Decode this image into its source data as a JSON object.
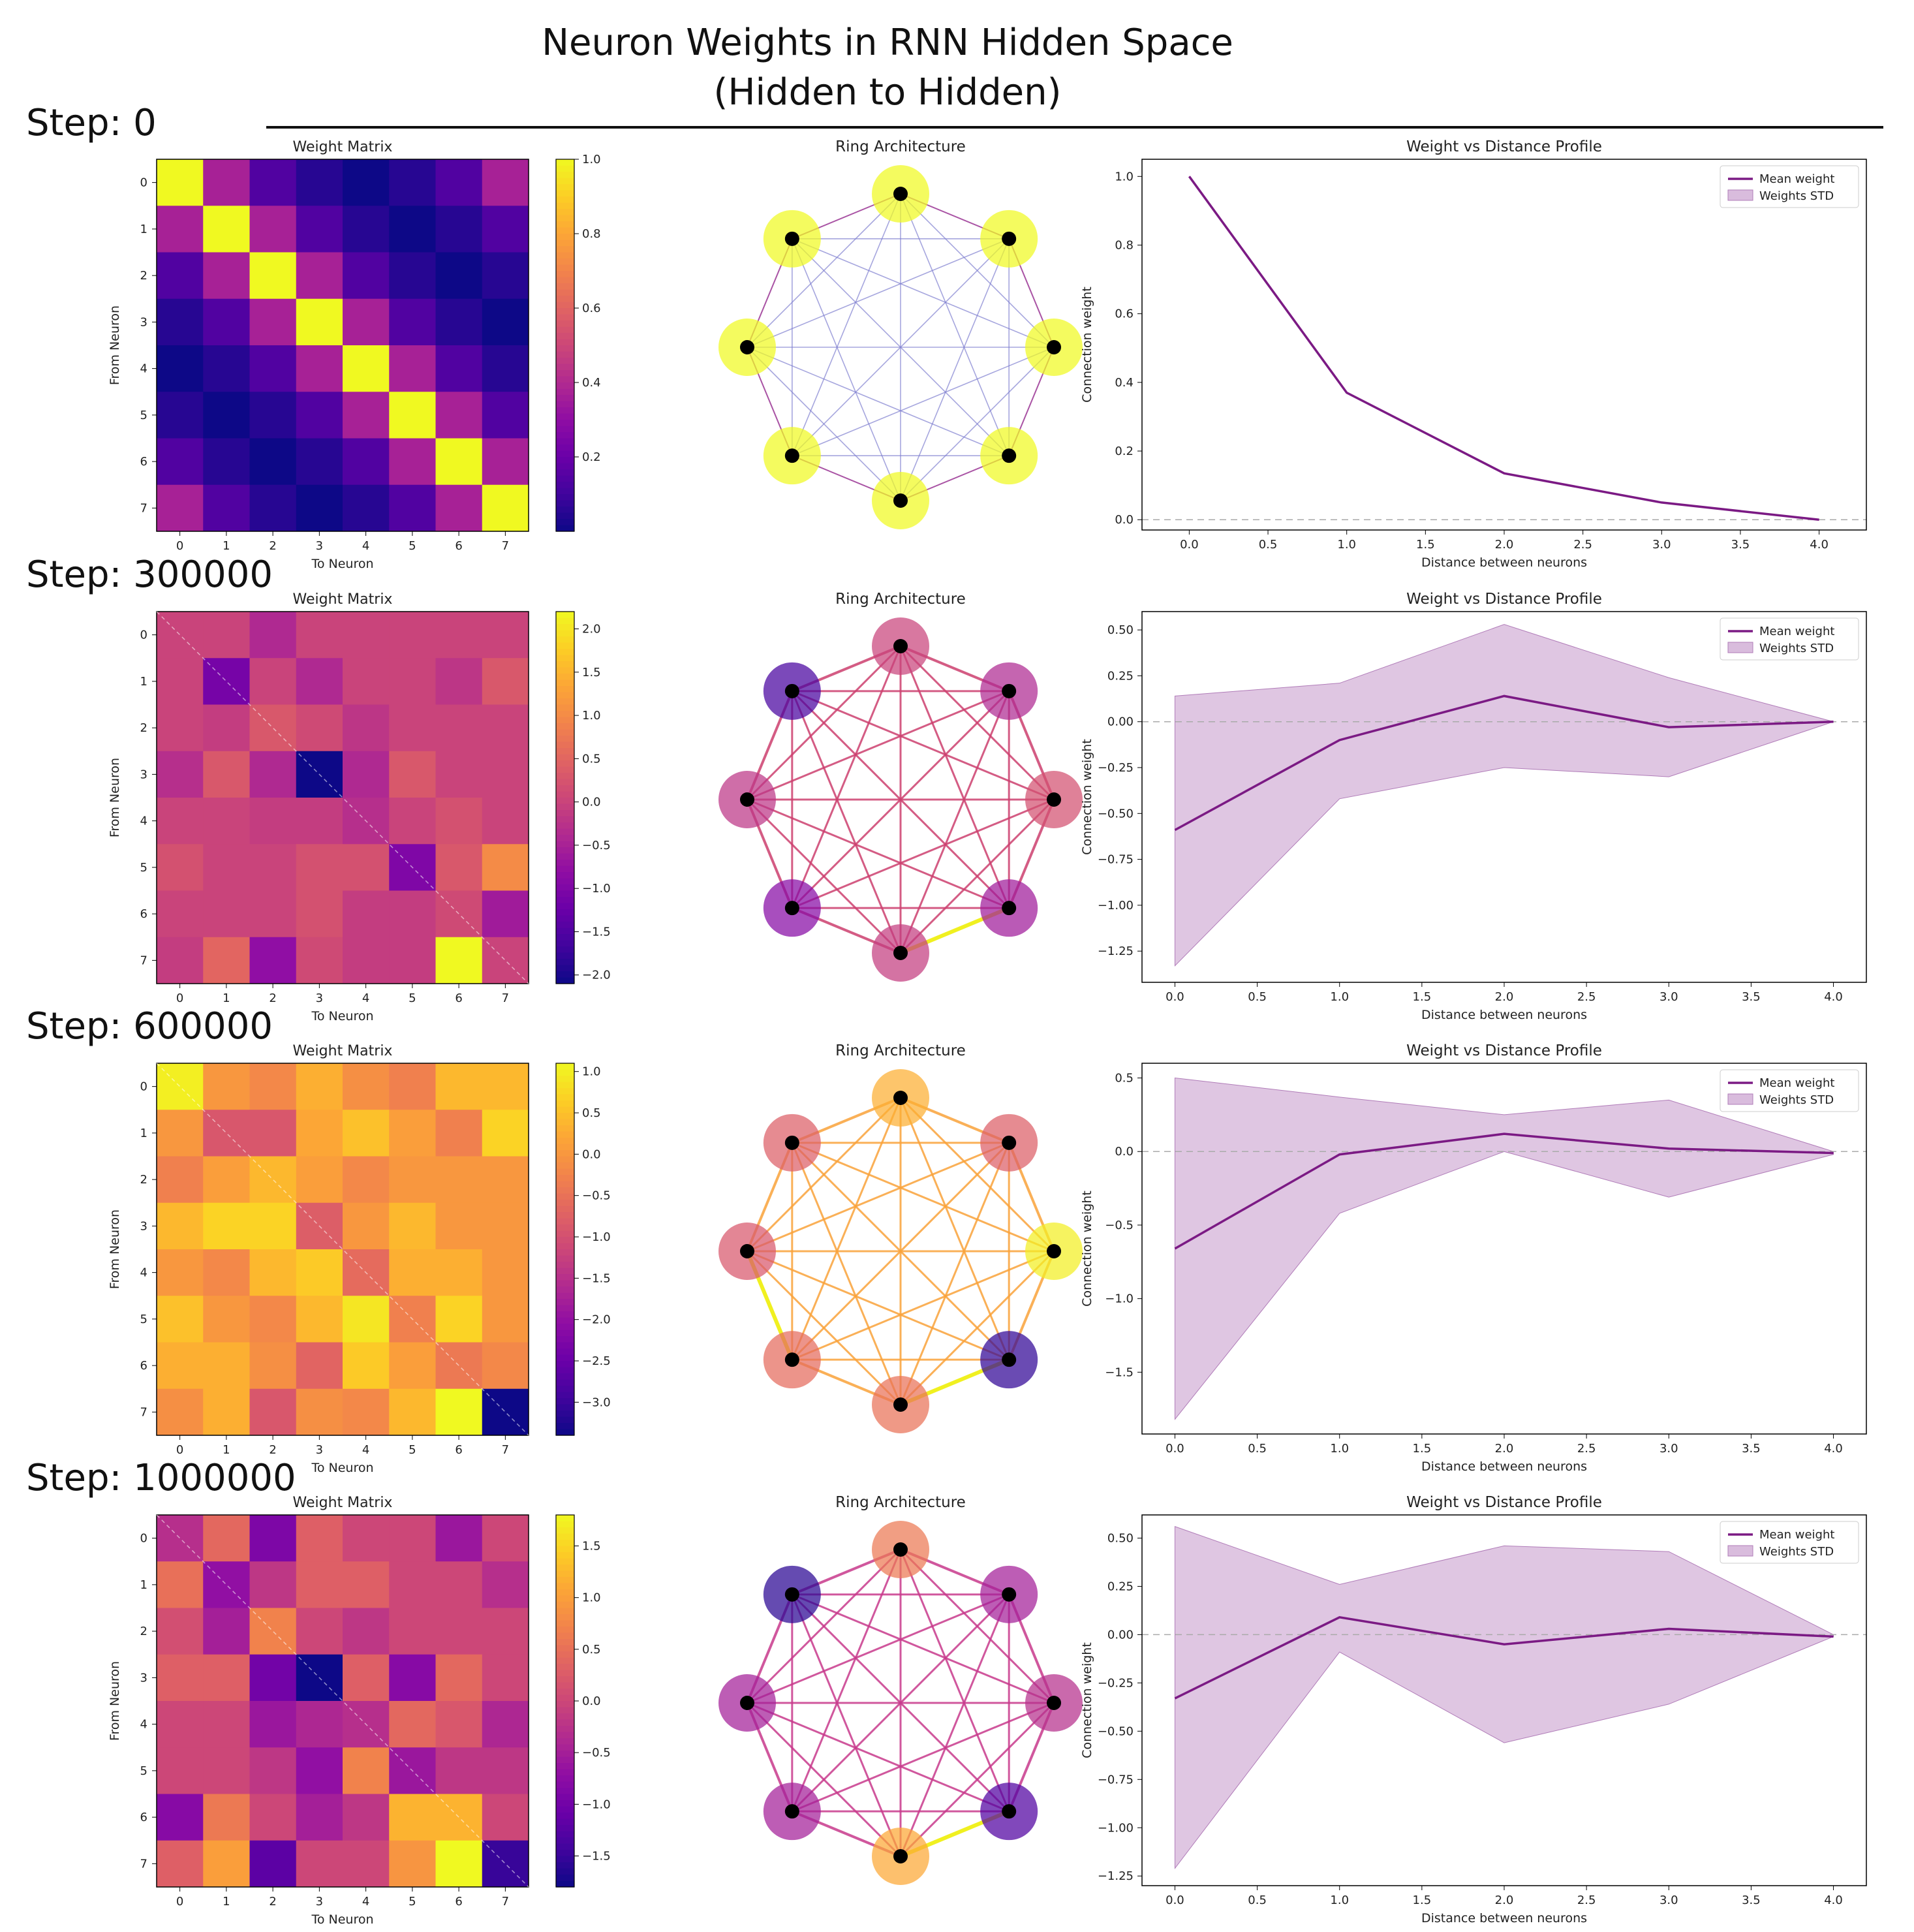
{
  "title": {
    "line1": "Neuron Weights in RNN Hidden Space",
    "line2": "(Hidden to Hidden)"
  },
  "rows": [
    {
      "step_label": "Step: 0",
      "matrix_title": "Weight Matrix",
      "ring_title": "Ring Architecture",
      "profile_title": "Weight vs Distance Profile"
    },
    {
      "step_label": "Step: 300000",
      "matrix_title": "Weight Matrix",
      "ring_title": "Ring Architecture",
      "profile_title": "Weight vs Distance Profile"
    },
    {
      "step_label": "Step: 600000",
      "matrix_title": "Weight Matrix",
      "ring_title": "Ring Architecture",
      "profile_title": "Weight vs Distance Profile"
    },
    {
      "step_label": "Step: 1000000",
      "matrix_title": "Weight Matrix",
      "ring_title": "Ring Architecture",
      "profile_title": "Weight vs Distance Profile"
    }
  ],
  "chart_data": [
    {
      "type": "heatmap",
      "title": "Weight Matrix",
      "xlabel": "To Neuron",
      "ylabel": "From Neuron",
      "ticks": [
        0,
        1,
        2,
        3,
        4,
        5,
        6,
        7
      ],
      "colormap": "plasma",
      "diagonal_line": false,
      "colorbar": {
        "min": 0,
        "max": 1,
        "ticks": [
          0.2,
          0.4,
          0.6,
          0.8,
          1.0
        ],
        "tick_labels": [
          "0.2",
          "0.4",
          "0.6",
          "0.8",
          "1.0"
        ]
      },
      "values": [
        [
          1.0,
          0.37,
          0.14,
          0.05,
          0.0,
          0.05,
          0.14,
          0.37
        ],
        [
          0.37,
          1.0,
          0.37,
          0.14,
          0.05,
          0.0,
          0.05,
          0.14
        ],
        [
          0.14,
          0.37,
          1.0,
          0.37,
          0.14,
          0.05,
          0.0,
          0.05
        ],
        [
          0.05,
          0.14,
          0.37,
          1.0,
          0.37,
          0.14,
          0.05,
          0.0
        ],
        [
          0.0,
          0.05,
          0.14,
          0.37,
          1.0,
          0.37,
          0.14,
          0.05
        ],
        [
          0.05,
          0.0,
          0.05,
          0.14,
          0.37,
          1.0,
          0.37,
          0.14
        ],
        [
          0.14,
          0.05,
          0.0,
          0.05,
          0.14,
          0.37,
          1.0,
          0.37
        ],
        [
          0.37,
          0.14,
          0.05,
          0.0,
          0.05,
          0.14,
          0.37,
          1.0
        ]
      ]
    },
    {
      "type": "ring",
      "title": "Ring Architecture",
      "node_values": [
        1,
        1,
        1,
        1,
        1,
        1,
        1,
        1
      ],
      "node_vmin": 0,
      "node_vmax": 1,
      "edge_style": "uniform",
      "edge_color": "#8080d0",
      "neighbor_edge_color": "#a0409a",
      "highlight_edges": []
    },
    {
      "type": "line",
      "title": "Weight vs Distance Profile",
      "xlabel": "Distance between neurons",
      "ylabel": "Connection weight",
      "x": [
        0,
        1,
        2,
        3,
        4
      ],
      "mean": [
        1.0,
        0.37,
        0.135,
        0.05,
        0.0
      ],
      "std_low": [
        1.0,
        0.37,
        0.135,
        0.05,
        0.0
      ],
      "std_high": [
        1.0,
        0.37,
        0.135,
        0.05,
        0.0
      ],
      "xlim": [
        -0.3,
        4.3
      ],
      "ylim": [
        -0.03,
        1.05
      ],
      "xticks": [
        0,
        0.5,
        1,
        1.5,
        2,
        2.5,
        3,
        3.5,
        4
      ],
      "xtick_labels": [
        "0.0",
        "0.5",
        "1.0",
        "1.5",
        "2.0",
        "2.5",
        "3.0",
        "3.5",
        "4.0"
      ],
      "yticks": [
        0,
        0.2,
        0.4,
        0.6,
        0.8,
        1.0
      ],
      "ytick_labels": [
        "0.0",
        "0.2",
        "0.4",
        "0.6",
        "0.8",
        "1.0"
      ],
      "legend": {
        "position": "top-right",
        "mean": "Mean weight",
        "std": "Weights STD"
      }
    },
    {
      "type": "heatmap",
      "title": "Weight Matrix",
      "xlabel": "To Neuron",
      "ylabel": "From Neuron",
      "ticks": [
        0,
        1,
        2,
        3,
        4,
        5,
        6,
        7
      ],
      "colormap": "plasma",
      "diagonal_line": true,
      "colorbar": {
        "min": -2.1,
        "max": 2.2,
        "ticks": [
          -2.0,
          -1.5,
          -1.0,
          -0.5,
          0.0,
          0.5,
          1.0,
          1.5,
          2.0
        ],
        "tick_labels": [
          "−2.0",
          "−1.5",
          "−1.0",
          "−0.5",
          "0.0",
          "0.5",
          "1.0",
          "1.5",
          "2.0"
        ]
      },
      "values": [
        [
          0.0,
          0.0,
          -0.4,
          0.0,
          0.0,
          0.0,
          0.0,
          0.0
        ],
        [
          0.0,
          -1.1,
          0.0,
          -0.4,
          0.0,
          0.0,
          -0.2,
          0.3
        ],
        [
          0.0,
          -0.1,
          0.3,
          0.1,
          -0.2,
          0.0,
          0.0,
          0.0
        ],
        [
          -0.3,
          0.3,
          -0.4,
          -2.1,
          -0.4,
          0.3,
          0.0,
          0.0
        ],
        [
          0.0,
          0.0,
          -0.1,
          -0.1,
          -0.3,
          0.0,
          0.2,
          0.0
        ],
        [
          0.2,
          0.0,
          0.0,
          0.2,
          0.2,
          -1.0,
          0.3,
          1.0
        ],
        [
          0.0,
          0.0,
          0.0,
          0.2,
          -0.1,
          -0.1,
          0.1,
          -0.6
        ],
        [
          -0.1,
          0.5,
          -0.8,
          0.1,
          -0.1,
          -0.1,
          2.2,
          0.0
        ]
      ]
    },
    {
      "type": "ring",
      "title": "Ring Architecture",
      "node_values": [
        0.0,
        -0.4,
        0.2,
        -0.6,
        -0.1,
        -0.9,
        -0.2,
        -1.6
      ],
      "node_vmin": -2.1,
      "node_vmax": 2.2,
      "edge_style": "weighted",
      "edge_color": "#cc3f6e",
      "highlight_edges": [
        [
          3,
          4
        ]
      ]
    },
    {
      "type": "line",
      "title": "Weight vs Distance Profile",
      "xlabel": "Distance between neurons",
      "ylabel": "Connection weight",
      "x": [
        0,
        1,
        2,
        3,
        4
      ],
      "mean": [
        -0.59,
        -0.1,
        0.14,
        -0.03,
        0.0
      ],
      "std_low": [
        -1.33,
        -0.42,
        -0.25,
        -0.3,
        0.0
      ],
      "std_high": [
        0.14,
        0.21,
        0.53,
        0.24,
        0.0
      ],
      "xlim": [
        -0.2,
        4.2
      ],
      "ylim": [
        -1.42,
        0.6
      ],
      "xticks": [
        0,
        0.5,
        1,
        1.5,
        2,
        2.5,
        3,
        3.5,
        4
      ],
      "xtick_labels": [
        "0.0",
        "0.5",
        "1.0",
        "1.5",
        "2.0",
        "2.5",
        "3.0",
        "3.5",
        "4.0"
      ],
      "yticks": [
        -1.25,
        -1.0,
        -0.75,
        -0.5,
        -0.25,
        0,
        0.25,
        0.5
      ],
      "ytick_labels": [
        "−1.25",
        "−1.00",
        "−0.75",
        "−0.50",
        "−0.25",
        "0.00",
        "0.25",
        "0.50"
      ],
      "legend": {
        "position": "top-right",
        "mean": "Mean weight",
        "std": "Weights STD"
      }
    },
    {
      "type": "heatmap",
      "title": "Weight Matrix",
      "xlabel": "To Neuron",
      "ylabel": "From Neuron",
      "ticks": [
        0,
        1,
        2,
        3,
        4,
        5,
        6,
        7
      ],
      "colormap": "plasma",
      "diagonal_line": true,
      "colorbar": {
        "min": -3.4,
        "max": 1.1,
        "ticks": [
          -3.0,
          -2.5,
          -2.0,
          -1.5,
          -1.0,
          -0.5,
          0.0,
          0.5,
          1.0
        ],
        "tick_labels": [
          "−3.0",
          "−2.5",
          "−2.0",
          "−1.5",
          "−1.0",
          "−0.5",
          "0.0",
          "0.5",
          "1.0"
        ]
      },
      "values": [
        [
          1.0,
          0.0,
          -0.2,
          0.3,
          -0.1,
          -0.3,
          0.4,
          0.4
        ],
        [
          0.0,
          -0.9,
          -0.9,
          0.2,
          0.5,
          0.1,
          -0.3,
          0.7
        ],
        [
          -0.3,
          0.1,
          0.4,
          0.1,
          -0.2,
          0.0,
          0.0,
          0.0
        ],
        [
          0.4,
          0.7,
          0.7,
          -0.8,
          0.0,
          0.4,
          0.0,
          0.0
        ],
        [
          0.0,
          -0.2,
          0.4,
          0.6,
          -0.6,
          0.3,
          0.3,
          0.0
        ],
        [
          0.5,
          0.0,
          -0.2,
          0.4,
          0.9,
          -0.3,
          0.7,
          0.0
        ],
        [
          0.3,
          0.3,
          -0.1,
          -0.7,
          0.6,
          0.1,
          -0.4,
          -0.2
        ],
        [
          -0.1,
          0.3,
          -0.9,
          -0.1,
          -0.2,
          0.4,
          1.1,
          -3.4
        ]
      ]
    },
    {
      "type": "ring",
      "title": "Ring Architecture",
      "node_values": [
        0.3,
        -0.8,
        1.0,
        -3.1,
        -0.5,
        -0.6,
        -0.9,
        -0.8
      ],
      "node_vmin": -3.4,
      "node_vmax": 1.1,
      "edge_style": "weighted",
      "edge_color": "#f9a23a",
      "highlight_edges": [
        [
          3,
          4
        ],
        [
          5,
          6
        ]
      ]
    },
    {
      "type": "line",
      "title": "Weight vs Distance Profile",
      "xlabel": "Distance between neurons",
      "ylabel": "Connection weight",
      "x": [
        0,
        1,
        2,
        3,
        4
      ],
      "mean": [
        -0.66,
        -0.02,
        0.12,
        0.02,
        -0.01
      ],
      "std_low": [
        -1.82,
        -0.42,
        0.0,
        -0.31,
        -0.02
      ],
      "std_high": [
        0.5,
        0.37,
        0.25,
        0.35,
        0.0
      ],
      "xlim": [
        -0.2,
        4.2
      ],
      "ylim": [
        -1.92,
        0.6
      ],
      "xticks": [
        0,
        0.5,
        1,
        1.5,
        2,
        2.5,
        3,
        3.5,
        4
      ],
      "xtick_labels": [
        "0.0",
        "0.5",
        "1.0",
        "1.5",
        "2.0",
        "2.5",
        "3.0",
        "3.5",
        "4.0"
      ],
      "yticks": [
        -1.5,
        -1.0,
        -0.5,
        0,
        0.5
      ],
      "ytick_labels": [
        "−1.5",
        "−1.0",
        "−0.5",
        "0.0",
        "0.5"
      ],
      "legend": {
        "position": "top-right",
        "mean": "Mean weight",
        "std": "Weights STD"
      }
    },
    {
      "type": "heatmap",
      "title": "Weight Matrix",
      "xlabel": "To Neuron",
      "ylabel": "From Neuron",
      "ticks": [
        0,
        1,
        2,
        3,
        4,
        5,
        6,
        7
      ],
      "colormap": "plasma",
      "diagonal_line": true,
      "colorbar": {
        "min": -1.8,
        "max": 1.8,
        "ticks": [
          -1.5,
          -1.0,
          -0.5,
          0.0,
          0.5,
          1.0,
          1.5
        ],
        "tick_labels": [
          "−1.5",
          "−1.0",
          "−0.5",
          "0.0",
          "0.5",
          "1.0",
          "1.5"
        ]
      },
      "values": [
        [
          -0.3,
          0.4,
          -0.9,
          0.3,
          0.0,
          0.0,
          -0.6,
          0.0
        ],
        [
          0.5,
          -0.7,
          -0.2,
          0.3,
          0.3,
          0.0,
          0.0,
          -0.3
        ],
        [
          0.1,
          -0.5,
          0.7,
          0.0,
          -0.2,
          0.0,
          0.0,
          0.0
        ],
        [
          0.3,
          0.3,
          -1.0,
          -1.8,
          0.3,
          -0.8,
          0.4,
          0.0
        ],
        [
          0.0,
          0.0,
          -0.6,
          -0.4,
          -0.3,
          0.4,
          0.2,
          -0.4
        ],
        [
          0.0,
          0.0,
          -0.2,
          -0.7,
          0.7,
          -0.6,
          -0.2,
          -0.2
        ],
        [
          -0.8,
          0.6,
          0.0,
          -0.5,
          -0.2,
          1.2,
          1.2,
          0.0
        ],
        [
          0.3,
          1.0,
          -1.2,
          0.0,
          0.0,
          0.9,
          1.8,
          -1.5
        ]
      ]
    },
    {
      "type": "ring",
      "title": "Ring Architecture",
      "node_values": [
        0.6,
        -0.5,
        -0.3,
        -1.3,
        1.1,
        -0.5,
        -0.5,
        -1.6
      ],
      "node_vmin": -1.8,
      "node_vmax": 1.8,
      "edge_style": "weighted",
      "edge_color": "#c83a8c",
      "highlight_edges": [
        [
          3,
          4
        ]
      ]
    },
    {
      "type": "line",
      "title": "Weight vs Distance Profile",
      "xlabel": "Distance between neurons",
      "ylabel": "Connection weight",
      "x": [
        0,
        1,
        2,
        3,
        4
      ],
      "mean": [
        -0.33,
        0.09,
        -0.05,
        0.03,
        -0.01
      ],
      "std_low": [
        -1.21,
        -0.09,
        -0.56,
        -0.36,
        -0.01
      ],
      "std_high": [
        0.56,
        0.26,
        0.46,
        0.43,
        0.0
      ],
      "xlim": [
        -0.2,
        4.2
      ],
      "ylim": [
        -1.3,
        0.62
      ],
      "xticks": [
        0,
        0.5,
        1,
        1.5,
        2,
        2.5,
        3,
        3.5,
        4
      ],
      "xtick_labels": [
        "0.0",
        "0.5",
        "1.0",
        "1.5",
        "2.0",
        "2.5",
        "3.0",
        "3.5",
        "4.0"
      ],
      "yticks": [
        -1.25,
        -1.0,
        -0.75,
        -0.5,
        -0.25,
        0,
        0.25,
        0.5
      ],
      "ytick_labels": [
        "−1.25",
        "−1.00",
        "−0.75",
        "−0.50",
        "−0.25",
        "0.00",
        "0.25",
        "0.50"
      ],
      "legend": {
        "position": "top-right",
        "mean": "Mean weight",
        "std": "Weights STD"
      }
    }
  ],
  "colors": {
    "line": "#7b1a84",
    "band": "#c9a0cf",
    "edge_default": "#8080d0",
    "highlight": "#f0f020",
    "node_dot": "#000000"
  }
}
